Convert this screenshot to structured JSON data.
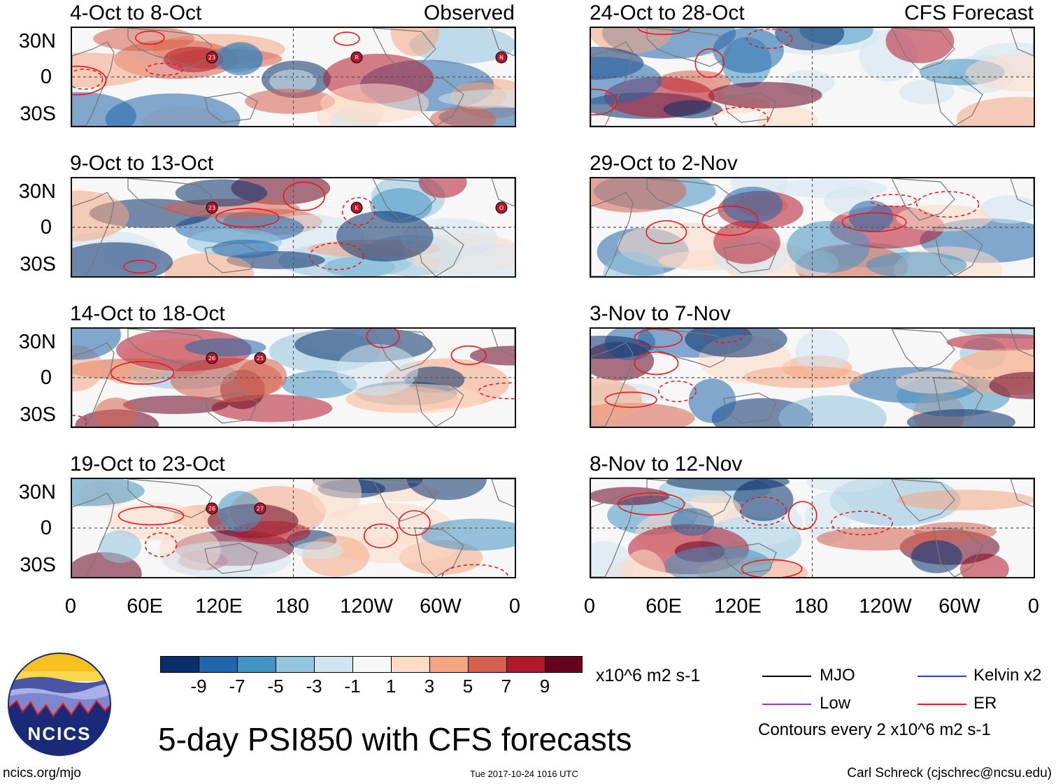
{
  "panels": [
    {
      "title": "4-Oct to 8-Oct",
      "tag": "Observed",
      "storms": [
        "23",
        "R",
        "N"
      ]
    },
    {
      "title": "24-Oct to 28-Oct",
      "tag": "CFS Forecast",
      "storms": []
    },
    {
      "title": "9-Oct to 13-Oct",
      "tag": "",
      "storms": [
        "23",
        "K",
        "O"
      ]
    },
    {
      "title": "29-Oct to 2-Nov",
      "tag": "",
      "storms": []
    },
    {
      "title": "14-Oct to 18-Oct",
      "tag": "",
      "storms": [
        "26",
        "25"
      ]
    },
    {
      "title": "3-Nov to 7-Nov",
      "tag": "",
      "storms": []
    },
    {
      "title": "19-Oct to 23-Oct",
      "tag": "",
      "storms": [
        "26",
        "27"
      ]
    },
    {
      "title": "8-Nov to 12-Nov",
      "tag": "",
      "storms": []
    }
  ],
  "lat_labels": [
    "30N",
    "0",
    "30S"
  ],
  "lon_labels": [
    "0",
    "60E",
    "120E",
    "180",
    "120W",
    "60W",
    "0"
  ],
  "colorbar": {
    "colors": [
      "#08306b",
      "#2166ac",
      "#4393c3",
      "#92c5de",
      "#d1e5f0",
      "#f7f7f7",
      "#fddbc7",
      "#f4a582",
      "#d6604d",
      "#b2182b",
      "#67001f"
    ],
    "labels": [
      "-9",
      "-7",
      "-5",
      "-3",
      "-1",
      "1",
      "3",
      "5",
      "7",
      "9"
    ],
    "units": "x10^6 m2 s-1"
  },
  "legend": {
    "items": [
      {
        "label": "MJO",
        "color": "#000000"
      },
      {
        "label": "Kelvin x2",
        "color": "#1f3fd6"
      },
      {
        "label": "Low",
        "color": "#9b30e0"
      },
      {
        "label": "ER",
        "color": "#e8191a"
      }
    ],
    "contour_note": "Contours every 2 x10^6 m2 s-1"
  },
  "logo": {
    "text": "NCICS"
  },
  "title": "5-day PSI850 with CFS forecasts",
  "footer": {
    "left": "ncics.org/mjo",
    "center": "Tue 2017-10-24 1016 UTC",
    "right": "Carl Schreck (cjschrec@ncsu.edu)"
  }
}
